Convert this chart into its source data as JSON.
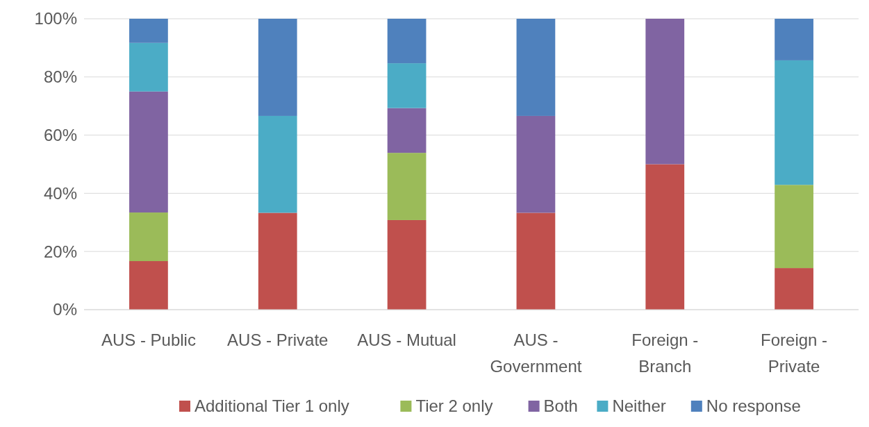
{
  "chart_data": {
    "type": "bar",
    "stacked": true,
    "categories": [
      "AUS - Public",
      "AUS - Private",
      "AUS - Mutual",
      "AUS - Government",
      "Foreign - Branch",
      "Foreign - Private"
    ],
    "series": [
      {
        "name": "Additional Tier 1 only",
        "color": "#c0504d",
        "values": [
          16.7,
          33.3,
          30.8,
          33.3,
          50,
          14.3
        ]
      },
      {
        "name": "Tier 2 only",
        "color": "#9bbb59",
        "values": [
          16.7,
          0,
          23.1,
          0,
          0,
          28.6
        ]
      },
      {
        "name": "Both",
        "color": "#8064a2",
        "values": [
          41.6,
          0,
          15.4,
          33.3,
          50,
          0
        ]
      },
      {
        "name": "Neither",
        "color": "#4bacc6",
        "values": [
          16.7,
          33.3,
          15.4,
          0,
          0,
          42.8
        ]
      },
      {
        "name": "No response",
        "color": "#4f81bd",
        "values": [
          8.3,
          33.4,
          15.3,
          33.4,
          0,
          14.3
        ]
      }
    ],
    "ylim": [
      0,
      100
    ],
    "yticks": [
      {
        "value": 0,
        "label": "0%"
      },
      {
        "value": 20,
        "label": "20%"
      },
      {
        "value": 40,
        "label": "40%"
      },
      {
        "value": 60,
        "label": "60%"
      },
      {
        "value": 80,
        "label": "80%"
      },
      {
        "value": 100,
        "label": "100%"
      }
    ],
    "grid": "y",
    "legend": "bottom"
  }
}
